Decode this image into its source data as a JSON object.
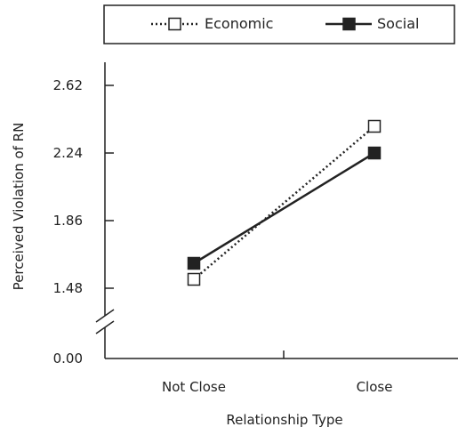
{
  "chart_data": {
    "type": "line",
    "xlabel": "Relationship Type",
    "ylabel": "Perceived Violation of RN",
    "categories": [
      "Not Close",
      "Close"
    ],
    "y_ticks": [
      "2.62",
      "2.24",
      "1.86",
      "1.48",
      "0.00"
    ],
    "ylim": [
      1.48,
      2.62
    ],
    "axis_break": true,
    "grid": false,
    "legend_position": "top",
    "series": [
      {
        "name": "Economic",
        "values": [
          1.53,
          2.39
        ],
        "line_style": "dotted",
        "marker": "open-square",
        "color": "#222222"
      },
      {
        "name": "Social",
        "values": [
          1.62,
          2.24
        ],
        "line_style": "solid",
        "marker": "filled-square",
        "color": "#222222"
      }
    ]
  }
}
